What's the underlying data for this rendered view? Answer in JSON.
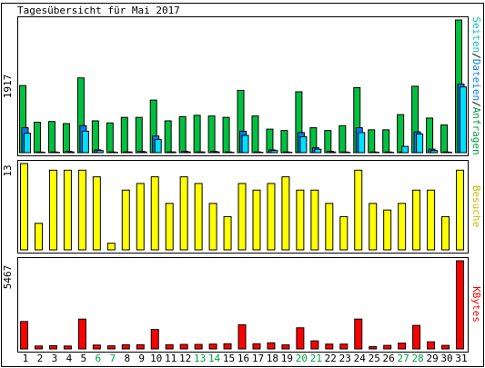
{
  "title": "Tagesübersicht für Mai 2017",
  "chart_data": {
    "type": "bar",
    "categories": [
      "1",
      "2",
      "3",
      "4",
      "5",
      "6",
      "7",
      "8",
      "9",
      "10",
      "11",
      "12",
      "13",
      "14",
      "15",
      "16",
      "17",
      "18",
      "19",
      "20",
      "21",
      "22",
      "23",
      "24",
      "25",
      "26",
      "27",
      "28",
      "29",
      "30",
      "31"
    ],
    "weekend_days": [
      "6",
      "7",
      "13",
      "14",
      "20",
      "21",
      "27",
      "28"
    ],
    "colors": {
      "anfragen": "#00c040",
      "dateien": "#0080ff",
      "seiten": "#00e0ff",
      "besuche": "#ffff00",
      "kbytes": "#ff0000",
      "weekend_label": "#00a040",
      "weekday_label": "#000000"
    },
    "panels": [
      {
        "id": "hits",
        "max_label": "1917",
        "ymax": 1917,
        "legend": [
          {
            "text": "Seiten",
            "color": "#00c0c0"
          },
          {
            "text": "/",
            "color": "#000000"
          },
          {
            "text": "Dateien",
            "color": "#0080ff"
          },
          {
            "text": "/",
            "color": "#000000"
          },
          {
            "text": "Anfragen",
            "color": "#00a040"
          }
        ],
        "series": [
          {
            "name": "Anfragen",
            "values": [
              970,
              440,
              450,
              420,
              1080,
              460,
              430,
              510,
              510,
              760,
              460,
              520,
              540,
              530,
              510,
              900,
              530,
              340,
              320,
              880,
              360,
              320,
              390,
              940,
              330,
              330,
              550,
              960,
              500,
              400,
              1917
            ]
          },
          {
            "name": "Dateien",
            "values": [
              360,
              10,
              10,
              20,
              390,
              40,
              10,
              10,
              20,
              240,
              10,
              20,
              10,
              20,
              10,
              310,
              10,
              40,
              10,
              290,
              70,
              20,
              10,
              360,
              10,
              10,
              10,
              300,
              50,
              10,
              990
            ]
          },
          {
            "name": "Seiten",
            "values": [
              280,
              5,
              5,
              10,
              310,
              30,
              5,
              10,
              10,
              190,
              10,
              10,
              10,
              10,
              5,
              250,
              5,
              30,
              5,
              230,
              50,
              10,
              5,
              290,
              5,
              5,
              90,
              270,
              30,
              5,
              950
            ]
          }
        ]
      },
      {
        "id": "visits",
        "max_label": "13",
        "ymax": 13,
        "legend": [
          {
            "text": "Besuche",
            "color": "#c0c000"
          }
        ],
        "series": [
          {
            "name": "Besuche",
            "values": [
              13,
              4,
              12,
              12,
              12,
              11,
              1,
              9,
              10,
              11,
              7,
              11,
              10,
              7,
              5,
              10,
              9,
              10,
              11,
              9,
              9,
              7,
              5,
              12,
              7,
              6,
              7,
              9,
              9,
              5,
              12
            ]
          }
        ]
      },
      {
        "id": "kbytes",
        "max_label": "5467",
        "ymax": 5467,
        "legend": [
          {
            "text": "KBytes",
            "color": "#ff0000"
          }
        ],
        "series": [
          {
            "name": "KBytes",
            "values": [
              1700,
              180,
              200,
              180,
              1850,
              240,
              190,
              260,
              260,
              1210,
              260,
              280,
              280,
              300,
              320,
              1500,
              320,
              380,
              250,
              1310,
              500,
              300,
              300,
              1850,
              140,
              220,
              360,
              1460,
              440,
              220,
              5467
            ]
          }
        ]
      }
    ]
  }
}
